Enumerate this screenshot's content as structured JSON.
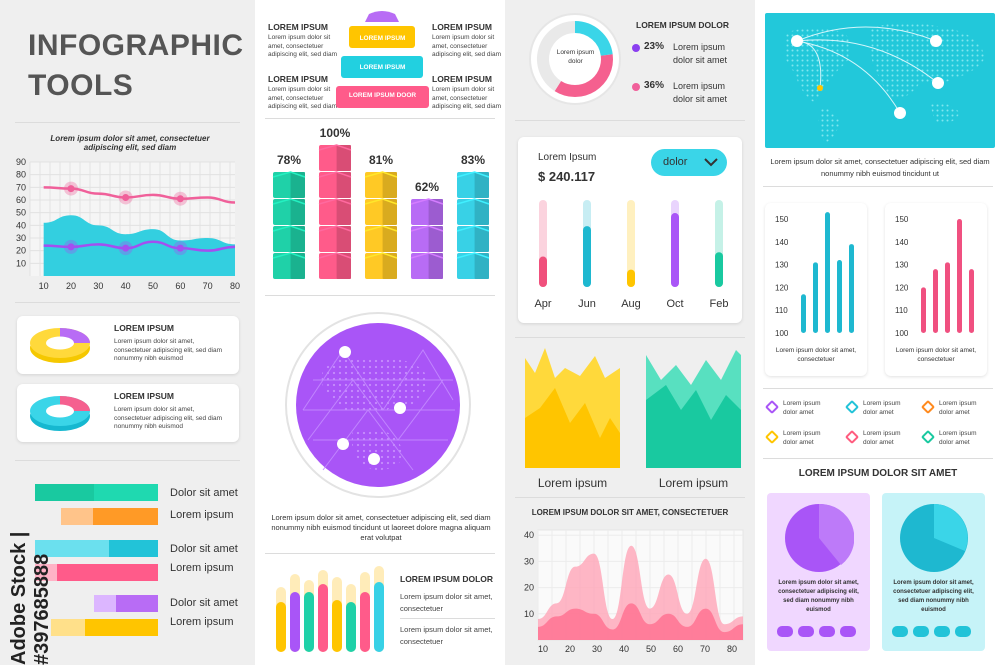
{
  "header": {
    "title_line1": "INFOGRAPHIC",
    "title_line2": "TOOLS"
  },
  "col1": {
    "wave_chart_caption": "Lorem ipsum dolor sit amet, consectetuer adipiscing elit, sed diam",
    "ring_cards": [
      {
        "title": "LOREM IPSUM",
        "text": "Lorem ipsum dolor sit amet, consectetuer adipiscing elit, sed diam nonummy nibh euismod"
      },
      {
        "title": "LOREM IPSUM",
        "text": "Lorem ipsum dolor sit amet, consectetuer adipiscing elit, sed diam nonummy nibh euismod"
      }
    ],
    "bar_labels": [
      "Dolor sit amet",
      "Lorem ipsum",
      "Dolor sit amet",
      "Lorem ipsum",
      "Dolor sit amet",
      "Lorem ipsum"
    ],
    "watermark": "Adobe Stock | #397685888"
  },
  "col2": {
    "pyramid": {
      "left_blocks": [
        {
          "title": "LOREM IPSUM",
          "text": "Lorem ipsum dolor sit amet, consectetuer adipiscing elit, sed diam"
        },
        {
          "title": "LOREM IPSUM",
          "text": "Lorem ipsum dolor sit amet, consectetuer adipiscing elit, sed diam"
        }
      ],
      "right_blocks": [
        {
          "title": "LOREM IPSUM",
          "text": "Lorem ipsum dolor sit amet, consectetuer adipiscing elit, sed diam"
        },
        {
          "title": "LOREM IPSUM",
          "text": "Lorem ipsum dolor sit amet, consectetuer adipiscing elit, sed diam"
        }
      ],
      "levels": [
        "LOREM IPSUM",
        "LOREM IPSUM",
        "LOREM IPSUM DOOR"
      ]
    },
    "globe_caption": "Lorem ipsum dolor sit amet, consectetuer adipiscing elit, sed diam nonummy nibh euismod tincidunt ut laoreet dolore magna aliquam erat volutpat",
    "mini_bars_title": "LOREM IPSUM DOLOR",
    "mini_bars_text1": "Lorem ipsum dolor sit amet, consectetuer",
    "mini_bars_text2": "Lorem ipsum dolor sit amet, consectetuer"
  },
  "col3": {
    "donut_title": "LOREM IPSUM DOLOR",
    "donut_center": "Lorem ipsum dolor",
    "donut_legend": [
      {
        "pct": "23%",
        "text": "Lorem ipsum dolor sit amet",
        "color": "#8b3ff0"
      },
      {
        "pct": "36%",
        "text": "Lorem ipsum dolor sit amet",
        "color": "#f0609a"
      }
    ],
    "panel": {
      "title": "Lorem Ipsum",
      "amount": "$ 240.117",
      "dropdown": "dolor"
    },
    "area_labels": [
      "Lorem ipsum",
      "Lorem ipsum"
    ],
    "bottom_chart_title": "LOREM IPSUM DOLOR SIT AMET, CONSECTETUER"
  },
  "col4": {
    "map_caption": "Lorem ipsum dolor sit amet, consectetuer adipiscing elit, sed diam nonummy nibh euismod tincidunt ut",
    "bar_card_captions": [
      "Lorem ipsum dolor sit amet, consectetuer",
      "Lorem ipsum dolor sit amet, consectetuer"
    ],
    "legend_items": [
      {
        "line1": "Lorem ipsum",
        "line2": "dolor amet",
        "color": "#a955f7"
      },
      {
        "line1": "Lorem ipsum",
        "line2": "dolor amet",
        "color": "#22c3d8"
      },
      {
        "line1": "Lorem ipsum",
        "line2": "dolor amet",
        "color": "#ff8a1e"
      },
      {
        "line1": "Lorem ipsum",
        "line2": "dolor amet",
        "color": "#ffc500"
      },
      {
        "line1": "Lorem ipsum",
        "line2": "dolor amet",
        "color": "#ff5b7e"
      },
      {
        "line1": "Lorem ipsum",
        "line2": "dolor amet",
        "color": "#19c9a0"
      }
    ],
    "section_title": "LOREM IPSUM DOLOR SIT AMET",
    "pie_cards": [
      {
        "text": "Lorem ipsum dolor sit amet, consectetuer adipiscing elit, sed diam nonummy nibh euismod"
      },
      {
        "text": "Lorem ipsum dolor sit amet, consectetuer adipiscing elit, sed diam nonummy nibh euismod"
      }
    ]
  },
  "chart_data": [
    {
      "type": "line",
      "x": [
        10,
        20,
        30,
        40,
        50,
        60,
        70,
        80
      ],
      "xlim": [
        5,
        80
      ],
      "ylim": [
        0,
        90
      ],
      "y_ticks": [
        10,
        20,
        30,
        40,
        50,
        60,
        70,
        80,
        90
      ],
      "series": [
        {
          "color": "#f0609a",
          "values": [
            70,
            69,
            65,
            62,
            64,
            61,
            62,
            58
          ]
        },
        {
          "color": "#a34ff0",
          "values": [
            24,
            23,
            25,
            22,
            27,
            22,
            20,
            23
          ]
        }
      ],
      "area": {
        "color": "#33cfe0",
        "values": [
          42,
          48,
          40,
          33,
          37,
          28,
          30,
          25
        ]
      }
    },
    {
      "type": "bar",
      "values_labels": [
        "78%",
        "100%",
        "81%",
        "62%",
        "83%"
      ],
      "values": [
        78,
        100,
        81,
        62,
        83
      ],
      "colors": [
        "#1fd1a8",
        "#ff5b8a",
        "#ffc925",
        "#b86cf5",
        "#38d1e6"
      ]
    },
    {
      "type": "bar",
      "categories": [
        "Apr",
        "Jun",
        "Aug",
        "Oct",
        "Feb"
      ],
      "values": [
        35,
        70,
        20,
        85,
        40
      ],
      "colors": [
        "#f0507c",
        "#1eb8d0",
        "#ffc500",
        "#a955f7",
        "#19c9a0"
      ]
    },
    {
      "type": "bar",
      "y_ticks": [
        100,
        110,
        120,
        130,
        140,
        150
      ],
      "ylim": [
        100,
        150
      ],
      "values": [
        117,
        131,
        153,
        132,
        139
      ],
      "color": "#1eb8d0"
    },
    {
      "type": "bar",
      "y_ticks": [
        100,
        110,
        120,
        130,
        140,
        150
      ],
      "ylim": [
        100,
        150
      ],
      "values": [
        120,
        128,
        131,
        150,
        128
      ],
      "color": "#f05080"
    },
    {
      "type": "area",
      "x_ticks": [
        10,
        20,
        30,
        40,
        50,
        60,
        70,
        80
      ],
      "y_ticks": [
        10,
        20,
        30,
        40
      ],
      "ylim": [
        0,
        42
      ],
      "series": [
        {
          "color": "#ffa5b8",
          "values": [
            8,
            14,
            28,
            33,
            8,
            36,
            12,
            25,
            10,
            31,
            6,
            9
          ]
        },
        {
          "color": "#ff6f8e",
          "values": [
            5,
            9,
            12,
            10,
            4,
            14,
            6,
            10,
            5,
            12,
            3,
            6
          ]
        }
      ]
    },
    {
      "type": "pie",
      "values": [
        23,
        36,
        41
      ],
      "colors": [
        "#3ad5e8",
        "#f5608f",
        "#e9e9e9"
      ]
    }
  ]
}
